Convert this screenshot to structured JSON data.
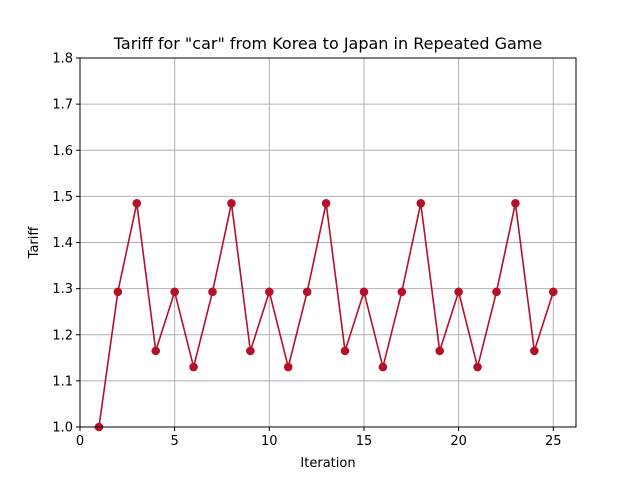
{
  "chart_data": {
    "type": "line",
    "title": "Tariff for \"car\" from Korea to Japan in Repeated Game",
    "xlabel": "Iteration",
    "ylabel": "Tariff",
    "xlim": [
      0,
      26.2
    ],
    "ylim": [
      1.0,
      1.8
    ],
    "xticks": [
      0,
      5,
      10,
      15,
      20,
      25
    ],
    "yticks": [
      1.0,
      1.1,
      1.2,
      1.3,
      1.4,
      1.5,
      1.6,
      1.7,
      1.8
    ],
    "xtick_labels": [
      "0",
      "5",
      "10",
      "15",
      "20",
      "25"
    ],
    "ytick_labels": [
      "1.0",
      "1.1",
      "1.2",
      "1.3",
      "1.4",
      "1.5",
      "1.6",
      "1.7",
      "1.8"
    ],
    "grid": true,
    "series": [
      {
        "color": "#b5102a",
        "marker": "circle",
        "x": [
          1,
          2,
          3,
          4,
          5,
          6,
          7,
          8,
          9,
          10,
          11,
          12,
          13,
          14,
          15,
          16,
          17,
          18,
          19,
          20,
          21,
          22,
          23,
          24,
          25
        ],
        "y": [
          1.0,
          1.293,
          1.485,
          1.165,
          1.293,
          1.13,
          1.293,
          1.485,
          1.165,
          1.293,
          1.13,
          1.293,
          1.485,
          1.165,
          1.293,
          1.13,
          1.293,
          1.485,
          1.165,
          1.293,
          1.13,
          1.293,
          1.485,
          1.165,
          1.293
        ]
      }
    ]
  }
}
